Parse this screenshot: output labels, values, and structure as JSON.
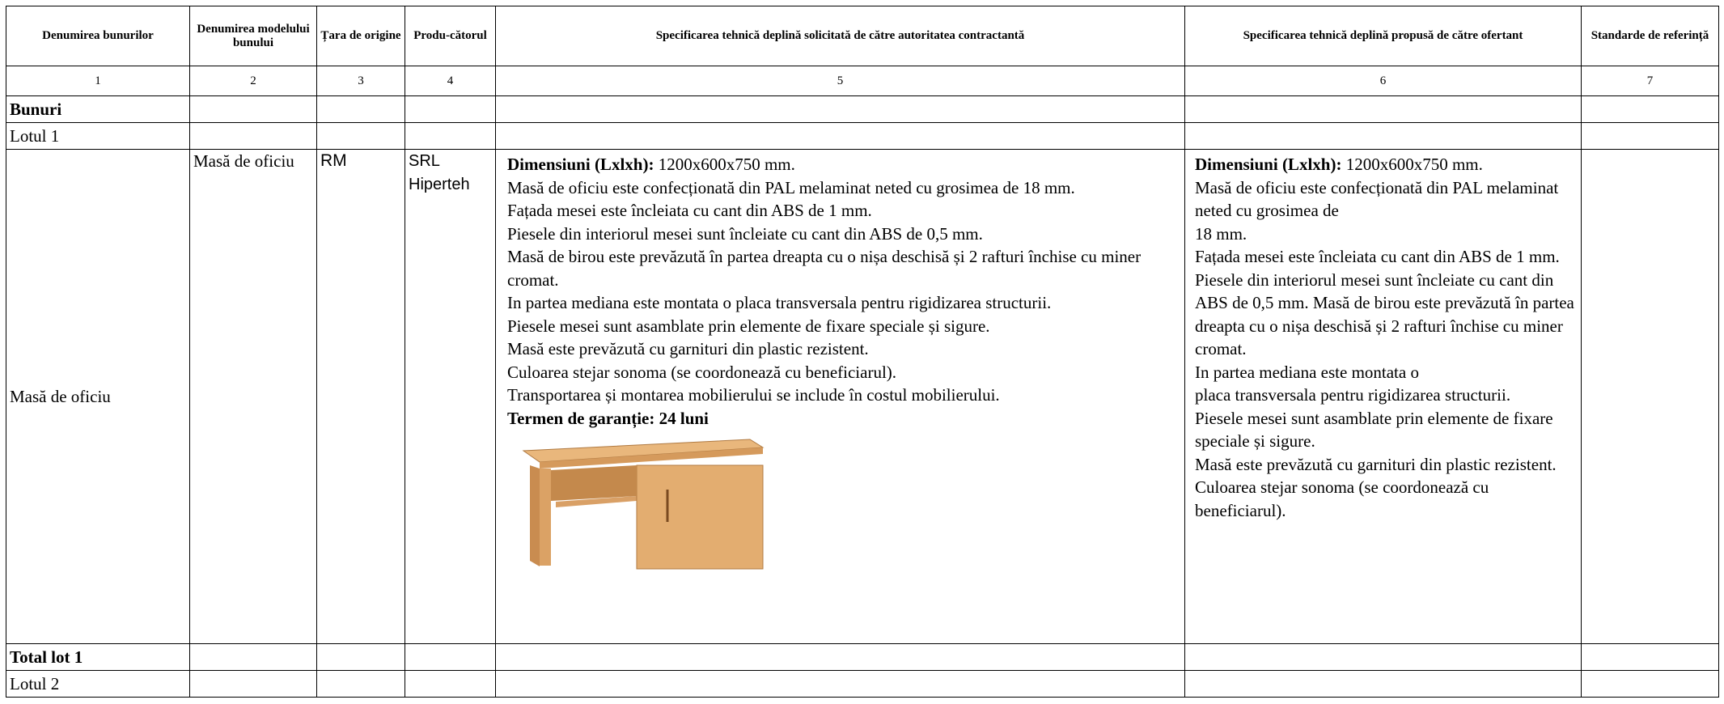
{
  "header": {
    "columns": [
      "Denumirea bunurilor",
      "Denumirea modelului bunului",
      "Țara de origine",
      "Produ-cătorul",
      "Specificarea tehnică deplină solicitată de către autoritatea contractantă",
      "Specificarea tehnică deplină propusă de către ofertant",
      "Standarde de referință"
    ],
    "numbers": [
      "1",
      "2",
      "3",
      "4",
      "5",
      "6",
      "7"
    ]
  },
  "rows": {
    "section": "Bunuri",
    "lot1": "Lotul 1",
    "total_lot1": "Total lot 1",
    "lot2": "Lotul 2",
    "item": {
      "name": "Masă de oficiu",
      "model": "Masă de oficiu",
      "origin": "RM",
      "producer": "SRL Hiperteh",
      "requested": {
        "dimensions_label": "Dimensiuni (Lxlxh):",
        "dimensions_value": "1200x600x750 mm.",
        "paragraphs": [
          "Masă de oficiu este confecționată din PAL melaminat neted cu grosimea de 18 mm.",
          "Fațada mesei este încleiata cu cant din ABS de 1 mm.",
          "Piesele din interiorul mesei sunt încleiate cu cant din ABS de 0,5 mm.",
          "Masă de birou este prevăzută în partea dreapta cu o nișa deschisă și 2 rafturi închise cu miner cromat.",
          "In partea mediana este montata o placa transversala pentru rigidizarea structurii.",
          "Piesele mesei sunt asamblate prin elemente de fixare speciale și sigure.",
          "Masă este prevăzută cu garnituri din plastic rezistent.",
          "Culoarea stejar sonoma (se coordonează cu beneficiarul).",
          "Transportarea și montarea mobilierului se include în costul mobilierului."
        ],
        "warranty": "Termen de garanție: 24 luni"
      },
      "offered": {
        "dimensions_label": "Dimensiuni (Lxlxh):",
        "dimensions_value": "1200x600x750 mm.",
        "paragraphs": [
          "Masă de oficiu este confecționată din PAL melaminat neted cu grosimea de",
          "18 mm.",
          "Fațada mesei este încleiata cu cant din ABS de 1 mm.",
          "Piesele din interiorul mesei sunt încleiate cu cant din ABS de 0,5 mm.    Masă de birou este prevăzută în partea dreapta cu o nișa deschisă și 2 rafturi  închise cu miner cromat.",
          "In partea mediana este montata o",
          "placa transversala pentru rigidizarea structurii.",
          "Piesele mesei sunt asamblate prin elemente de fixare speciale și sigure.",
          "Masă este prevăzută cu garnituri din plastic rezistent.",
          "Culoarea stejar sonoma (se coordonează cu beneficiarul)."
        ]
      }
    }
  }
}
